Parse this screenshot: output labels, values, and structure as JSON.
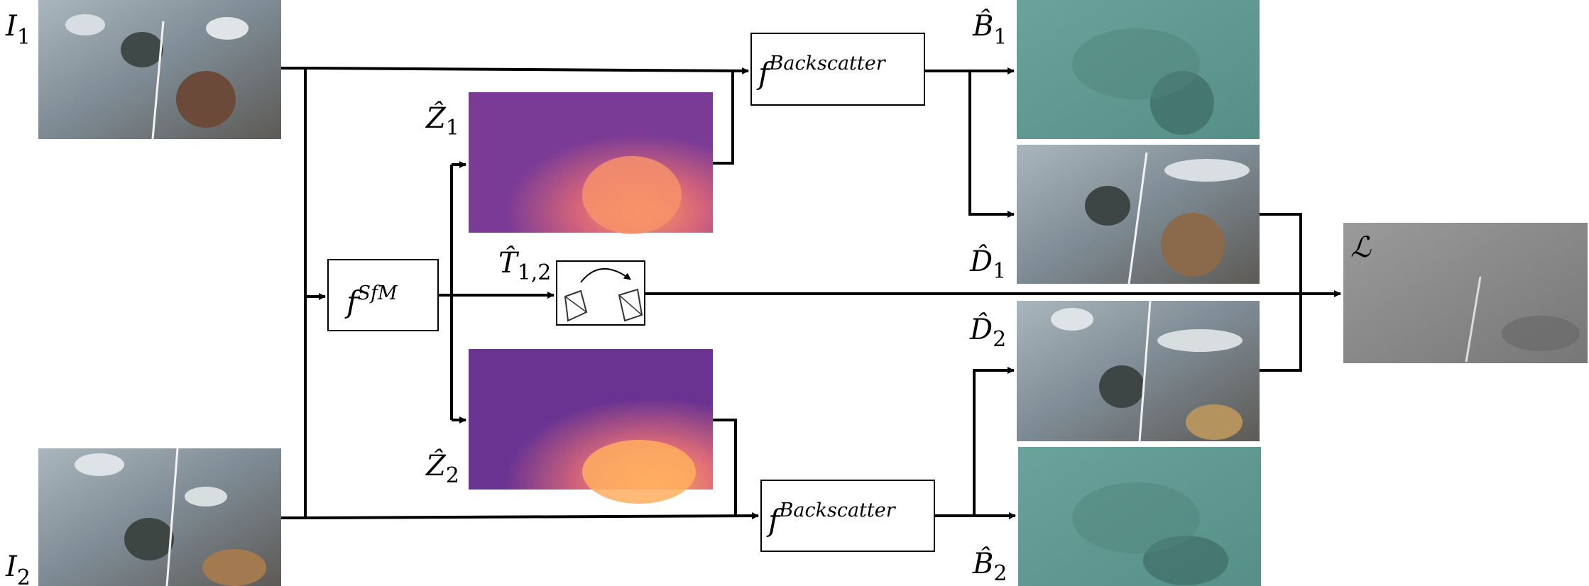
{
  "labels": {
    "I1": {
      "base": "I",
      "sub": "1"
    },
    "I2": {
      "base": "I",
      "sub": "2"
    },
    "Z1": {
      "base": "Ẑ",
      "sub": "1"
    },
    "Z2": {
      "base": "Ẑ",
      "sub": "2"
    },
    "T12": {
      "base": "T̂",
      "sub": "1,2"
    },
    "B1": {
      "base": "B̂",
      "sub": "1"
    },
    "B2": {
      "base": "B̂",
      "sub": "2"
    },
    "D1": {
      "base": "D̂",
      "sub": "1"
    },
    "D2": {
      "base": "D̂",
      "sub": "2"
    },
    "L": {
      "base": "ℒ"
    }
  },
  "boxes": {
    "sfm": {
      "base": "f",
      "sup": "SfM"
    },
    "backscatter_top": {
      "base": "f",
      "sup": "Backscatter"
    },
    "backscatter_bottom": {
      "base": "f",
      "sup": "Backscatter"
    }
  },
  "colors": {
    "line": "#000000",
    "water": "#5f9a94",
    "seafloor": "#7d8a93",
    "depth_far": "#5a2a8a",
    "depth_near": "#f08a5a",
    "loss_map": "#8c8c8c"
  }
}
